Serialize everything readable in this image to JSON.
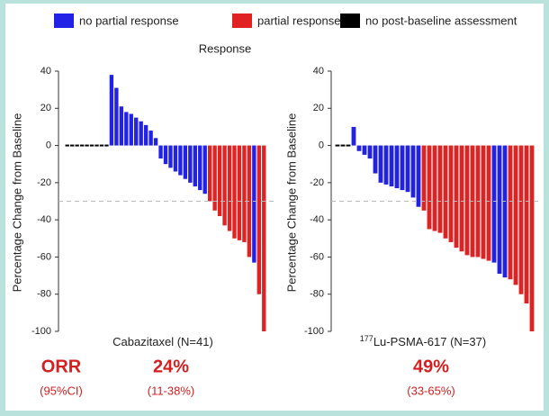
{
  "legend": [
    {
      "name": "no partial response",
      "color": "#2222e6"
    },
    {
      "name": "partial response",
      "color": "#e02222"
    },
    {
      "name": "no post-baseline assessment",
      "color": "#000000"
    }
  ],
  "title": "Response",
  "summary": {
    "label": "ORR",
    "ci_label": "(95%CI)"
  },
  "chart_data": [
    {
      "type": "bar",
      "ylabel": "Percentage Change from Baseline",
      "xlabel": "Cabazitaxel (N=41)",
      "ylim": [
        -100,
        40
      ],
      "yticks": [
        -100,
        -80,
        -60,
        -40,
        -20,
        0,
        20,
        40
      ],
      "reference_line": -30,
      "values": [
        0,
        0,
        0,
        0,
        0,
        0,
        0,
        0,
        0,
        38,
        31,
        21,
        18,
        17,
        15,
        13,
        11,
        8,
        4,
        -7,
        -10,
        -12,
        -14,
        -16,
        -18,
        -20,
        -22,
        -24,
        -26,
        -30,
        -35,
        -38,
        -43,
        -46,
        -50,
        -51,
        -52,
        -60,
        -63,
        -80,
        -100
      ],
      "colors": [
        "#000000",
        "#000000",
        "#000000",
        "#000000",
        "#000000",
        "#000000",
        "#000000",
        "#000000",
        "#000000",
        "#2222e6",
        "#2222e6",
        "#2222e6",
        "#2222e6",
        "#2222e6",
        "#2222e6",
        "#2222e6",
        "#2222e6",
        "#2222e6",
        "#2222e6",
        "#2222e6",
        "#2222e6",
        "#2222e6",
        "#2222e6",
        "#2222e6",
        "#2222e6",
        "#2222e6",
        "#2222e6",
        "#2222e6",
        "#2222e6",
        "#e02222",
        "#e02222",
        "#e02222",
        "#e02222",
        "#e02222",
        "#e02222",
        "#e02222",
        "#e02222",
        "#e02222",
        "#2222e6",
        "#e02222",
        "#e02222"
      ],
      "orr": "24%",
      "ci": "(11-38%)"
    },
    {
      "type": "bar",
      "ylabel": "Percentage Change from Baseline",
      "xlabel_sup": "177",
      "xlabel": "Lu-PSMA-617 (N=37)",
      "ylim": [
        -100,
        40
      ],
      "yticks": [
        -100,
        -80,
        -60,
        -40,
        -20,
        0,
        20,
        40
      ],
      "reference_line": -30,
      "values": [
        0,
        0,
        0,
        10,
        -3,
        -5,
        -7,
        -15,
        -20,
        -21,
        -22,
        -23,
        -24,
        -25,
        -28,
        -33,
        -35,
        -45,
        -46,
        -47,
        -50,
        -52,
        -55,
        -57,
        -59,
        -60,
        -60,
        -61,
        -62,
        -63,
        -69,
        -71,
        -72,
        -75,
        -80,
        -85,
        -100
      ],
      "colors": [
        "#000000",
        "#000000",
        "#000000",
        "#2222e6",
        "#2222e6",
        "#2222e6",
        "#2222e6",
        "#2222e6",
        "#2222e6",
        "#2222e6",
        "#2222e6",
        "#2222e6",
        "#2222e6",
        "#2222e6",
        "#2222e6",
        "#2222e6",
        "#e02222",
        "#e02222",
        "#e02222",
        "#e02222",
        "#e02222",
        "#e02222",
        "#e02222",
        "#e02222",
        "#e02222",
        "#e02222",
        "#e02222",
        "#e02222",
        "#e02222",
        "#2222e6",
        "#2222e6",
        "#2222e6",
        "#e02222",
        "#e02222",
        "#e02222",
        "#e02222",
        "#e02222"
      ],
      "orr": "49%",
      "ci": "(33-65%)"
    }
  ]
}
